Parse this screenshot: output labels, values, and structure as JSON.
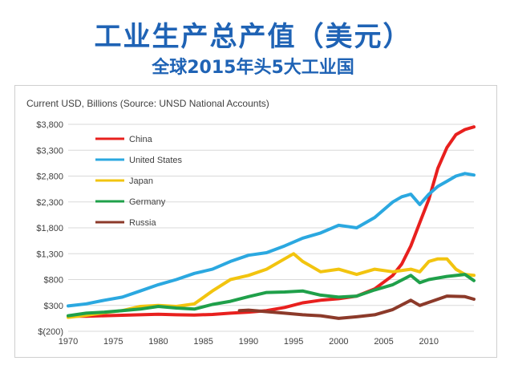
{
  "header": {
    "title": "工业生产总产值（美元）",
    "subtitle": "全球2015年头5大工业国"
  },
  "chart_data": {
    "type": "line",
    "source_label": "Current USD, Billions (Source: UNSD  National Accounts)",
    "ylim": [
      -200,
      3800
    ],
    "yticks": [
      -200,
      300,
      800,
      1300,
      1800,
      2300,
      2800,
      3300,
      3800
    ],
    "ytick_labels": [
      "$(200)",
      "$300",
      "$800",
      "$1,300",
      "$1,800",
      "$2,300",
      "$2,800",
      "$3,300",
      "$3,800"
    ],
    "xlim": [
      1970,
      2015
    ],
    "xticks": [
      1970,
      1975,
      1980,
      1985,
      1990,
      1995,
      2000,
      2005,
      2010
    ],
    "xtick_labels": [
      "1970",
      "1975",
      "1980",
      "1985",
      "1990",
      "1995",
      "2000",
      "2005",
      "2010"
    ],
    "grid": true,
    "legend_placement": "top-left",
    "series": [
      {
        "name": "China",
        "color": "#e8201e",
        "x": [
          1970,
          1972,
          1974,
          1976,
          1978,
          1980,
          1982,
          1984,
          1986,
          1988,
          1990,
          1992,
          1994,
          1996,
          1998,
          2000,
          2002,
          2004,
          2006,
          2007,
          2008,
          2009,
          2010,
          2011,
          2012,
          2013,
          2014,
          2015
        ],
        "y": [
          95,
          90,
          100,
          110,
          120,
          130,
          120,
          115,
          125,
          150,
          170,
          200,
          260,
          350,
          400,
          430,
          480,
          620,
          880,
          1100,
          1450,
          1900,
          2350,
          2950,
          3350,
          3600,
          3700,
          3750
        ]
      },
      {
        "name": "United States",
        "color": "#2ba8e0",
        "x": [
          1970,
          1972,
          1974,
          1976,
          1978,
          1980,
          1982,
          1984,
          1986,
          1988,
          1990,
          1992,
          1994,
          1996,
          1998,
          2000,
          2002,
          2004,
          2006,
          2007,
          2008,
          2009,
          2010,
          2011,
          2012,
          2013,
          2014,
          2015
        ],
        "y": [
          290,
          330,
          400,
          460,
          580,
          700,
          800,
          920,
          1000,
          1150,
          1270,
          1320,
          1450,
          1600,
          1700,
          1850,
          1800,
          2000,
          2300,
          2400,
          2450,
          2250,
          2450,
          2600,
          2700,
          2800,
          2850,
          2820
        ]
      },
      {
        "name": "Japan",
        "color": "#f2c40f",
        "x": [
          1970,
          1972,
          1974,
          1976,
          1978,
          1980,
          1982,
          1984,
          1986,
          1988,
          1990,
          1992,
          1994,
          1995,
          1996,
          1998,
          2000,
          2002,
          2004,
          2006,
          2008,
          2009,
          2010,
          2011,
          2012,
          2013,
          2014,
          2015
        ],
        "y": [
          70,
          110,
          160,
          200,
          280,
          300,
          280,
          330,
          580,
          800,
          880,
          1000,
          1200,
          1300,
          1150,
          950,
          1000,
          900,
          1000,
          950,
          1000,
          950,
          1150,
          1200,
          1200,
          1000,
          900,
          880
        ]
      },
      {
        "name": "Germany",
        "color": "#1fa04a",
        "x": [
          1970,
          1972,
          1974,
          1976,
          1978,
          1980,
          1982,
          1984,
          1986,
          1988,
          1990,
          1992,
          1994,
          1996,
          1998,
          2000,
          2002,
          2004,
          2006,
          2008,
          2009,
          2010,
          2012,
          2014,
          2015
        ],
        "y": [
          100,
          150,
          170,
          200,
          230,
          280,
          250,
          230,
          320,
          380,
          470,
          550,
          560,
          580,
          500,
          460,
          480,
          600,
          700,
          880,
          740,
          800,
          860,
          900,
          780
        ]
      },
      {
        "name": "Russia",
        "color": "#8c3a2a",
        "x": [
          1989,
          1990,
          1992,
          1994,
          1996,
          1998,
          2000,
          2002,
          2004,
          2006,
          2008,
          2009,
          2010,
          2012,
          2014,
          2015
        ],
        "y": [
          200,
          210,
          180,
          150,
          120,
          100,
          50,
          80,
          120,
          220,
          400,
          300,
          360,
          480,
          470,
          420
        ]
      }
    ]
  }
}
